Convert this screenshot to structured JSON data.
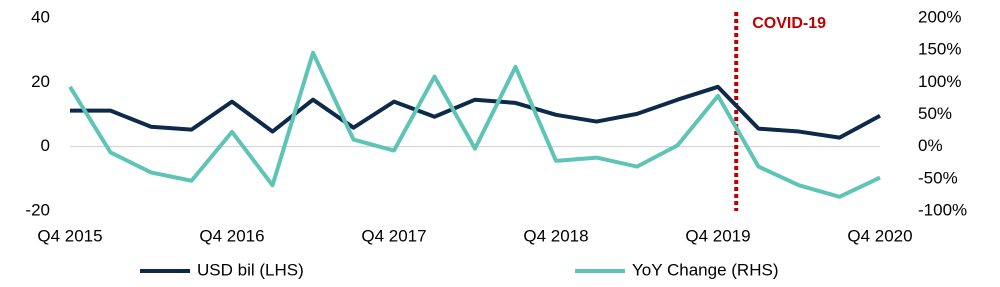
{
  "chart_data": {
    "type": "line",
    "categories": [
      "Q4 2015",
      null,
      null,
      null,
      "Q4 2016",
      null,
      null,
      null,
      "Q4 2017",
      null,
      null,
      null,
      "Q4 2018",
      null,
      null,
      null,
      "Q4 2019",
      null,
      null,
      null,
      "Q4 2020"
    ],
    "series": [
      {
        "name": "USD bil (LHS)",
        "color": "#0e2a4a",
        "values": [
          11.2,
          11.2,
          6.2,
          5.3,
          14,
          4.7,
          14.6,
          5.9,
          14,
          9.3,
          14.6,
          13.6,
          9.9,
          7.8,
          10.2,
          14.6,
          18.6,
          5.6,
          4.7,
          2.8,
          9.6
        ]
      },
      {
        "name": "YoY Change (RHS)",
        "color": "#5ec4b6",
        "axis": "y2",
        "values": [
          93,
          -9,
          -40,
          -53,
          23,
          -60,
          146,
          11,
          -6,
          109,
          -3,
          124,
          -22,
          -17,
          -31,
          2,
          79,
          -31,
          -60,
          -78,
          -48
        ]
      }
    ],
    "ylim": [
      -20,
      40
    ],
    "yticks": [
      -20,
      0,
      20,
      40
    ],
    "y2lim": [
      -100,
      200
    ],
    "y2ticks": [
      {
        "value": -100,
        "label": "-100%"
      },
      {
        "value": -50,
        "label": "-50%"
      },
      {
        "value": 0,
        "label": "0%"
      },
      {
        "value": 50,
        "label": "50%"
      },
      {
        "value": 100,
        "label": "100%"
      },
      {
        "value": 150,
        "label": "150%"
      },
      {
        "value": 200,
        "label": "200%"
      }
    ],
    "annotation": {
      "text": "COVID-19",
      "color": "#c00000"
    },
    "legend": "bottom"
  }
}
